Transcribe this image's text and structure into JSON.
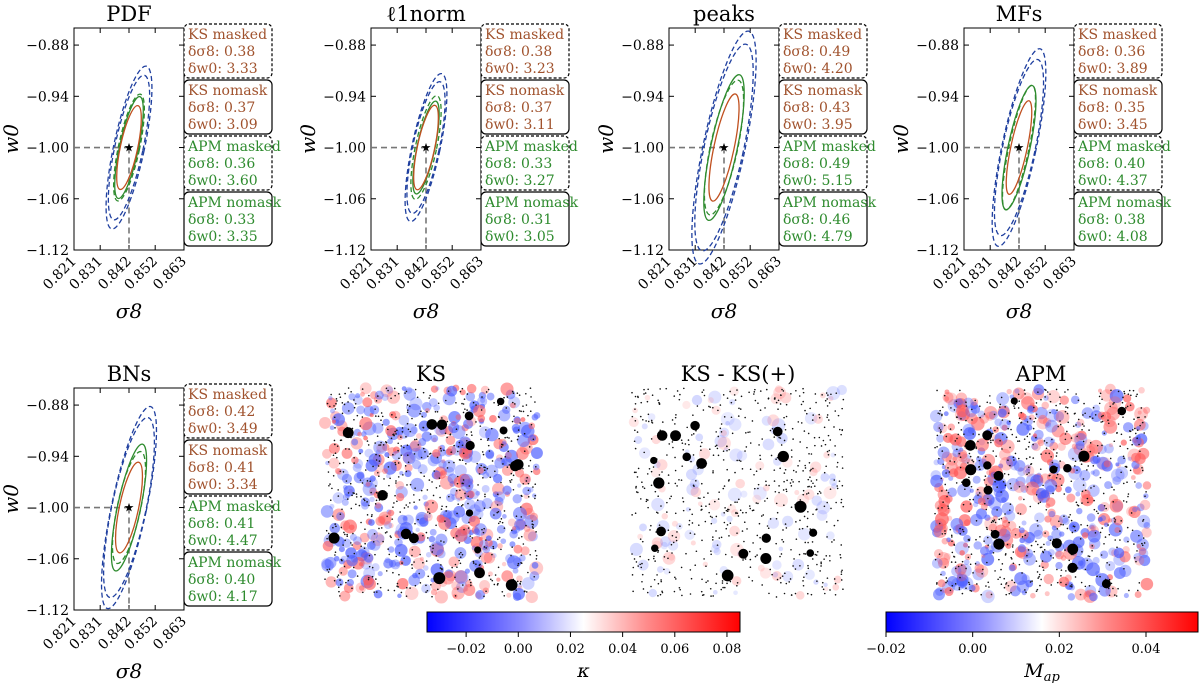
{
  "chart_data": {
    "type": "contour-panels",
    "axes": {
      "xlabel": "σ8",
      "ylabel": "w0",
      "x_ticks": [
        "0.821",
        "0.831",
        "0.842",
        "0.852",
        "0.863"
      ],
      "y_ticks": [
        "−0.88",
        "−0.94",
        "−1.00",
        "−1.06",
        "−1.12"
      ],
      "xlim": [
        0.821,
        0.863
      ],
      "ylim": [
        -1.12,
        -0.86
      ],
      "fiducial": {
        "sigma8": 0.842,
        "w0": -1.0
      }
    },
    "legend_boxes": [
      {
        "label": "KS masked",
        "color": "#a0522d",
        "style": "dashed",
        "s8_label": "δσ8:",
        "w0_label": "δw0:"
      },
      {
        "label": "KS nomask",
        "color": "#a0522d",
        "style": "solid",
        "s8_label": "δσ8:",
        "w0_label": "δw0:"
      },
      {
        "label": "APM masked",
        "color": "#2e8b2e",
        "style": "dashed",
        "s8_label": "δσ8:",
        "w0_label": "δw0:"
      },
      {
        "label": "APM nomask",
        "color": "#2e8b2e",
        "style": "solid",
        "s8_label": "δσ8:",
        "w0_label": "δw0:"
      }
    ],
    "panels": [
      {
        "title": "PDF",
        "values": [
          [
            "0.38",
            "3.33"
          ],
          [
            "0.37",
            "3.09"
          ],
          [
            "0.36",
            "3.60"
          ],
          [
            "0.33",
            "3.35"
          ]
        ]
      },
      {
        "title": "ℓ1norm",
        "values": [
          [
            "0.38",
            "3.23"
          ],
          [
            "0.37",
            "3.11"
          ],
          [
            "0.33",
            "3.27"
          ],
          [
            "0.31",
            "3.05"
          ]
        ]
      },
      {
        "title": "peaks",
        "values": [
          [
            "0.49",
            "4.20"
          ],
          [
            "0.43",
            "3.95"
          ],
          [
            "0.49",
            "5.15"
          ],
          [
            "0.46",
            "4.79"
          ]
        ]
      },
      {
        "title": "MFs",
        "values": [
          [
            "0.36",
            "3.89"
          ],
          [
            "0.35",
            "3.45"
          ],
          [
            "0.40",
            "4.37"
          ],
          [
            "0.38",
            "4.08"
          ]
        ]
      },
      {
        "title": "BNs",
        "values": [
          [
            "0.42",
            "3.49"
          ],
          [
            "0.41",
            "3.34"
          ],
          [
            "0.41",
            "4.47"
          ],
          [
            "0.40",
            "4.17"
          ]
        ]
      }
    ],
    "ellipse_colors": {
      "outer": "#1f3f9f",
      "ks": "#c0501f",
      "apm": "#2e8b2e"
    },
    "maps": [
      {
        "title": "KS",
        "kind": "kappa"
      },
      {
        "title": "KS - KS(+)",
        "kind": "diff"
      },
      {
        "title": "APM",
        "kind": "map"
      }
    ],
    "colorbars": [
      {
        "label": "κ",
        "min": -0.035,
        "max": 0.085,
        "ticks": [
          "−0.02",
          "0.00",
          "0.02",
          "0.04",
          "0.06",
          "0.08"
        ],
        "tick_values": [
          -0.02,
          0.0,
          0.02,
          0.04,
          0.06,
          0.08
        ]
      },
      {
        "label": "Map",
        "min": -0.02,
        "max": 0.052,
        "ticks": [
          "−0.02",
          "0.00",
          "0.02",
          "0.04"
        ],
        "tick_values": [
          -0.02,
          0.0,
          0.02,
          0.04
        ]
      }
    ]
  }
}
